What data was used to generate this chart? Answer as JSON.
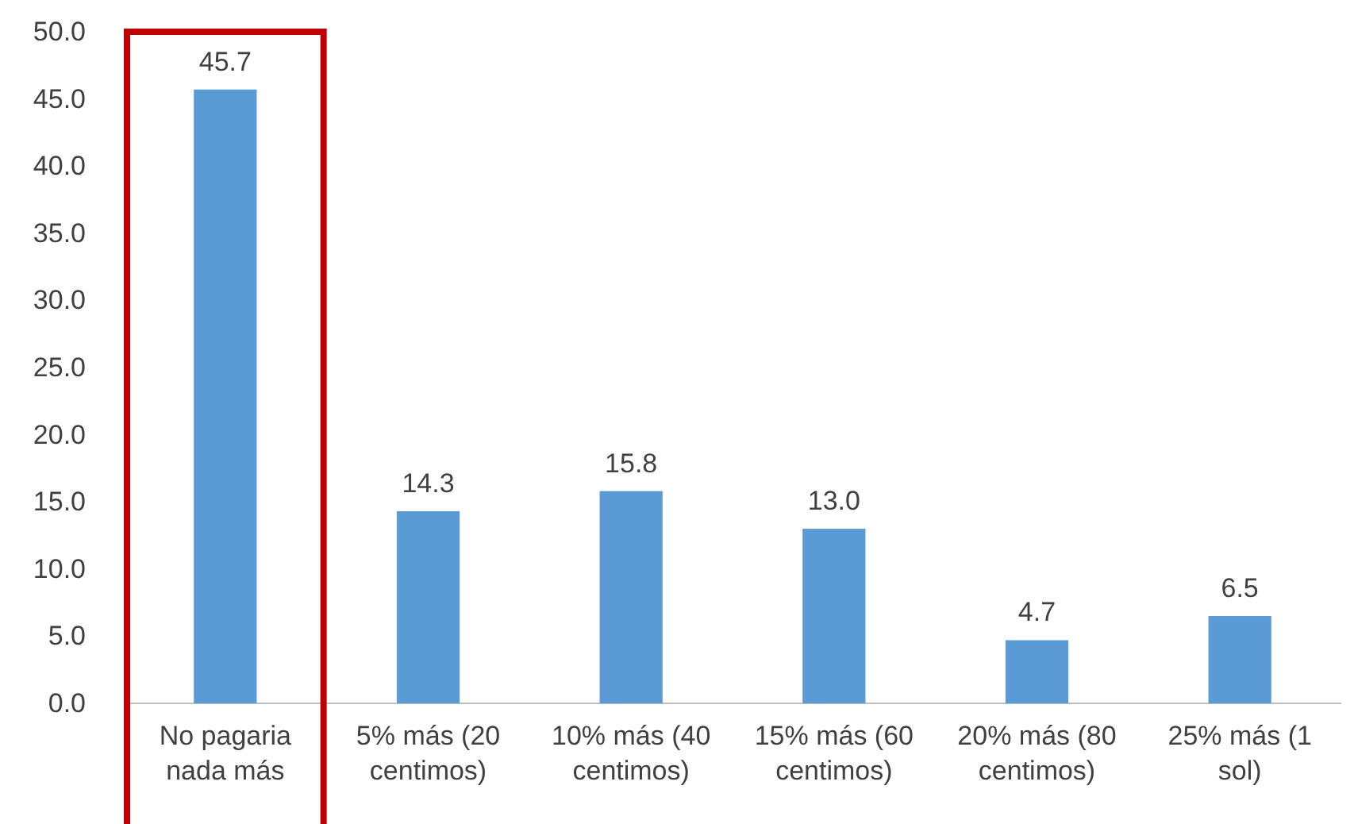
{
  "chart_data": {
    "type": "bar",
    "categories": [
      "No pagaria nada más",
      "5% más (20 centimos)",
      "10% más (40 centimos)",
      "15% más (60 centimos)",
      "20% más (80 centimos)",
      "25% más (1 sol)"
    ],
    "values": [
      45.7,
      14.3,
      15.8,
      13.0,
      4.7,
      6.5
    ],
    "value_labels": [
      "45.7",
      "14.3",
      "15.8",
      "13.0",
      "4.7",
      "6.5"
    ],
    "color": "#5b9bd5",
    "ylim": [
      0,
      50
    ],
    "yticks": [
      {
        "value": 0,
        "label": "0.0"
      },
      {
        "value": 5,
        "label": "5.0"
      },
      {
        "value": 10,
        "label": "10.0"
      },
      {
        "value": 15,
        "label": "15.0"
      },
      {
        "value": 20,
        "label": "20.0"
      },
      {
        "value": 25,
        "label": "25.0"
      },
      {
        "value": 30,
        "label": "30.0"
      },
      {
        "value": 35,
        "label": "35.0"
      },
      {
        "value": 40,
        "label": "40.0"
      },
      {
        "value": 45,
        "label": "45.0"
      },
      {
        "value": 50,
        "label": "50.0"
      }
    ],
    "grid": false
  }
}
